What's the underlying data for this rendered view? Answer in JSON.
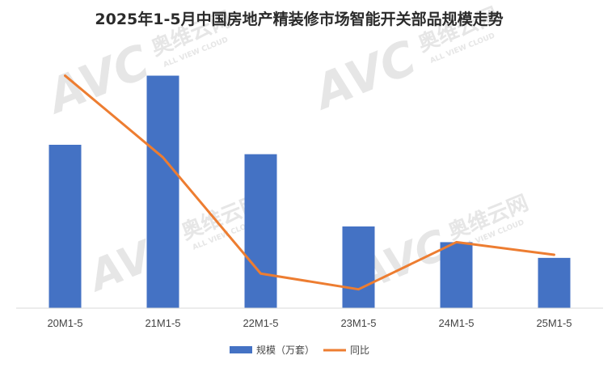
{
  "chart_data": {
    "type": "bar",
    "title": "2025年1-5月中国房地产精装修市场智能开关部品规模走势",
    "categories": [
      "20M1-5",
      "21M1-5",
      "22M1-5",
      "23M1-5",
      "24M1-5",
      "25M1-5"
    ],
    "series": [
      {
        "name": "规模（万套）",
        "type": "bar",
        "color": "#4472C4",
        "values": [
          52,
          74,
          49,
          26,
          21,
          16
        ]
      },
      {
        "name": "同比",
        "type": "line",
        "color": "#ED7D31",
        "values": [
          74,
          48,
          11,
          6,
          21,
          17
        ]
      }
    ],
    "ylim": [
      0,
      78
    ],
    "grid": false,
    "legend": "bottom",
    "watermark": {
      "logo": "AVC",
      "brand": "奥维云网",
      "tagline": "ALL VIEW CLOUD"
    }
  }
}
